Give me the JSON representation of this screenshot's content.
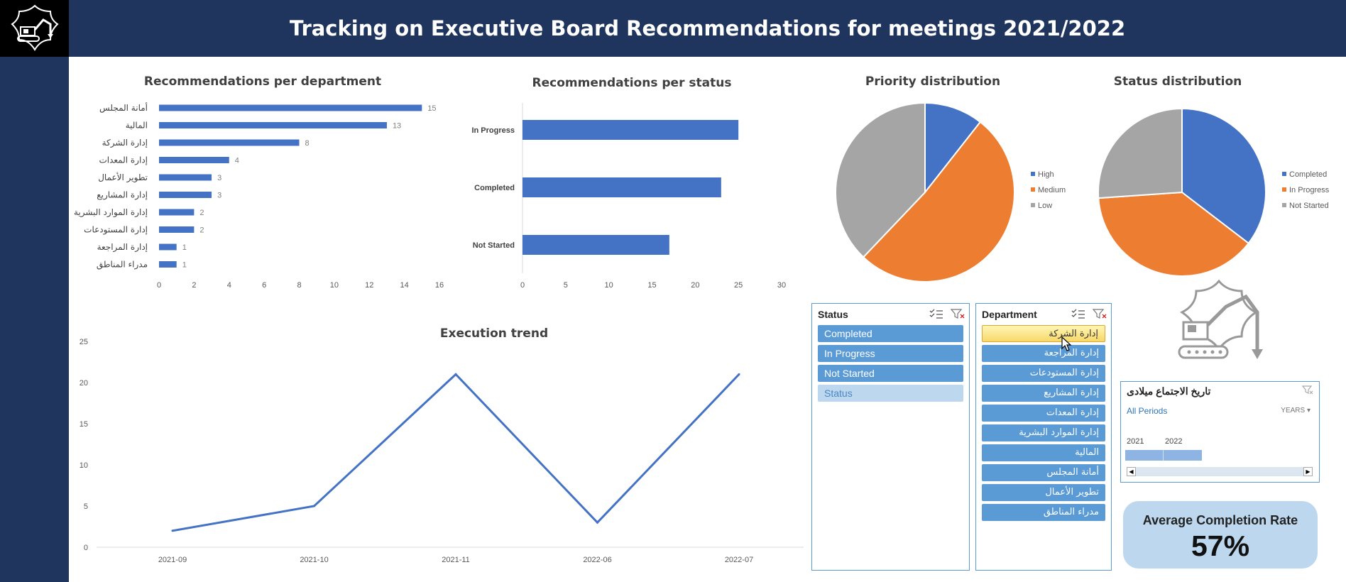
{
  "header": {
    "title": "Tracking on Executive Board Recommendations for meetings 2021/2022"
  },
  "logo": {
    "icon": "excavator-icon"
  },
  "colors": {
    "navy": "#1f355e",
    "blue": "#4472c4",
    "orange": "#ed7d31",
    "gray": "#a5a5a5",
    "slicer_blue": "#5b9bd5",
    "slicer_light": "#bdd7ee"
  },
  "chart_data": [
    {
      "id": "dept",
      "type": "bar",
      "orientation": "horizontal",
      "title": "Recommendations per department",
      "categories": [
        "أمانة المجلس",
        "المالية",
        "إدارة الشركة",
        "إدارة المعدات",
        "تطوير الأعمال",
        "إدارة المشاريع",
        "إدارة الموارد البشرية",
        "إدارة المستودعات",
        "إدارة المراجعة",
        "مدراء المناطق"
      ],
      "values": [
        15,
        13,
        8,
        4,
        3,
        3,
        2,
        2,
        1,
        1
      ],
      "xlim": [
        0,
        16
      ],
      "xticks": [
        "0",
        "2",
        "4",
        "6",
        "8",
        "10",
        "12",
        "14",
        "16"
      ],
      "data_labels": true
    },
    {
      "id": "status",
      "type": "bar",
      "orientation": "horizontal",
      "title": "Recommendations per status",
      "categories": [
        "In Progress",
        "Completed",
        "Not Started"
      ],
      "values": [
        25,
        23,
        17
      ],
      "xlim": [
        0,
        30
      ],
      "xticks": [
        "0",
        "5",
        "10",
        "15",
        "20",
        "25",
        "30"
      ]
    },
    {
      "id": "priority",
      "type": "pie",
      "title": "Priority distribution",
      "labels": [
        "High",
        "Medium",
        "Low"
      ],
      "values": [
        10.6,
        51.5,
        37.9
      ],
      "legend": "right"
    },
    {
      "id": "statuspie",
      "type": "pie",
      "title": "Status distribution",
      "labels": [
        "Completed",
        "In Progress",
        "Not Started"
      ],
      "values": [
        35.4,
        38.5,
        26.1
      ],
      "legend": "right"
    },
    {
      "id": "trend",
      "type": "line",
      "title": "Execution trend",
      "categories": [
        "2021-09",
        "2021-10",
        "2021-11",
        "2022-06",
        "2022-07"
      ],
      "values": [
        2,
        5,
        21,
        3,
        21
      ],
      "ylim": [
        0,
        25
      ],
      "yticks": [
        "0",
        "5",
        "10",
        "15",
        "20",
        "25"
      ]
    }
  ],
  "slicer_status": {
    "title": "Status",
    "items": [
      "Completed",
      "In Progress",
      "Not Started",
      "Status"
    ]
  },
  "slicer_department": {
    "title": "Department",
    "items": [
      "إدارة الشركة",
      "إدارة المراجعة",
      "إدارة المستودعات",
      "إدارة المشاريع",
      "إدارة المعدات",
      "إدارة الموارد البشرية",
      "المالية",
      "أمانة المجلس",
      "تطوير الأعمال",
      "مدراء المناطق"
    ],
    "selected": "إدارة الشركة"
  },
  "timeline": {
    "title": "تاريخ الاجتماع ميلادى",
    "period": "All Periods",
    "level": "YEARS",
    "years": [
      "2021",
      "2022"
    ]
  },
  "kpi": {
    "label": "Average Completion Rate",
    "value": "57%"
  }
}
